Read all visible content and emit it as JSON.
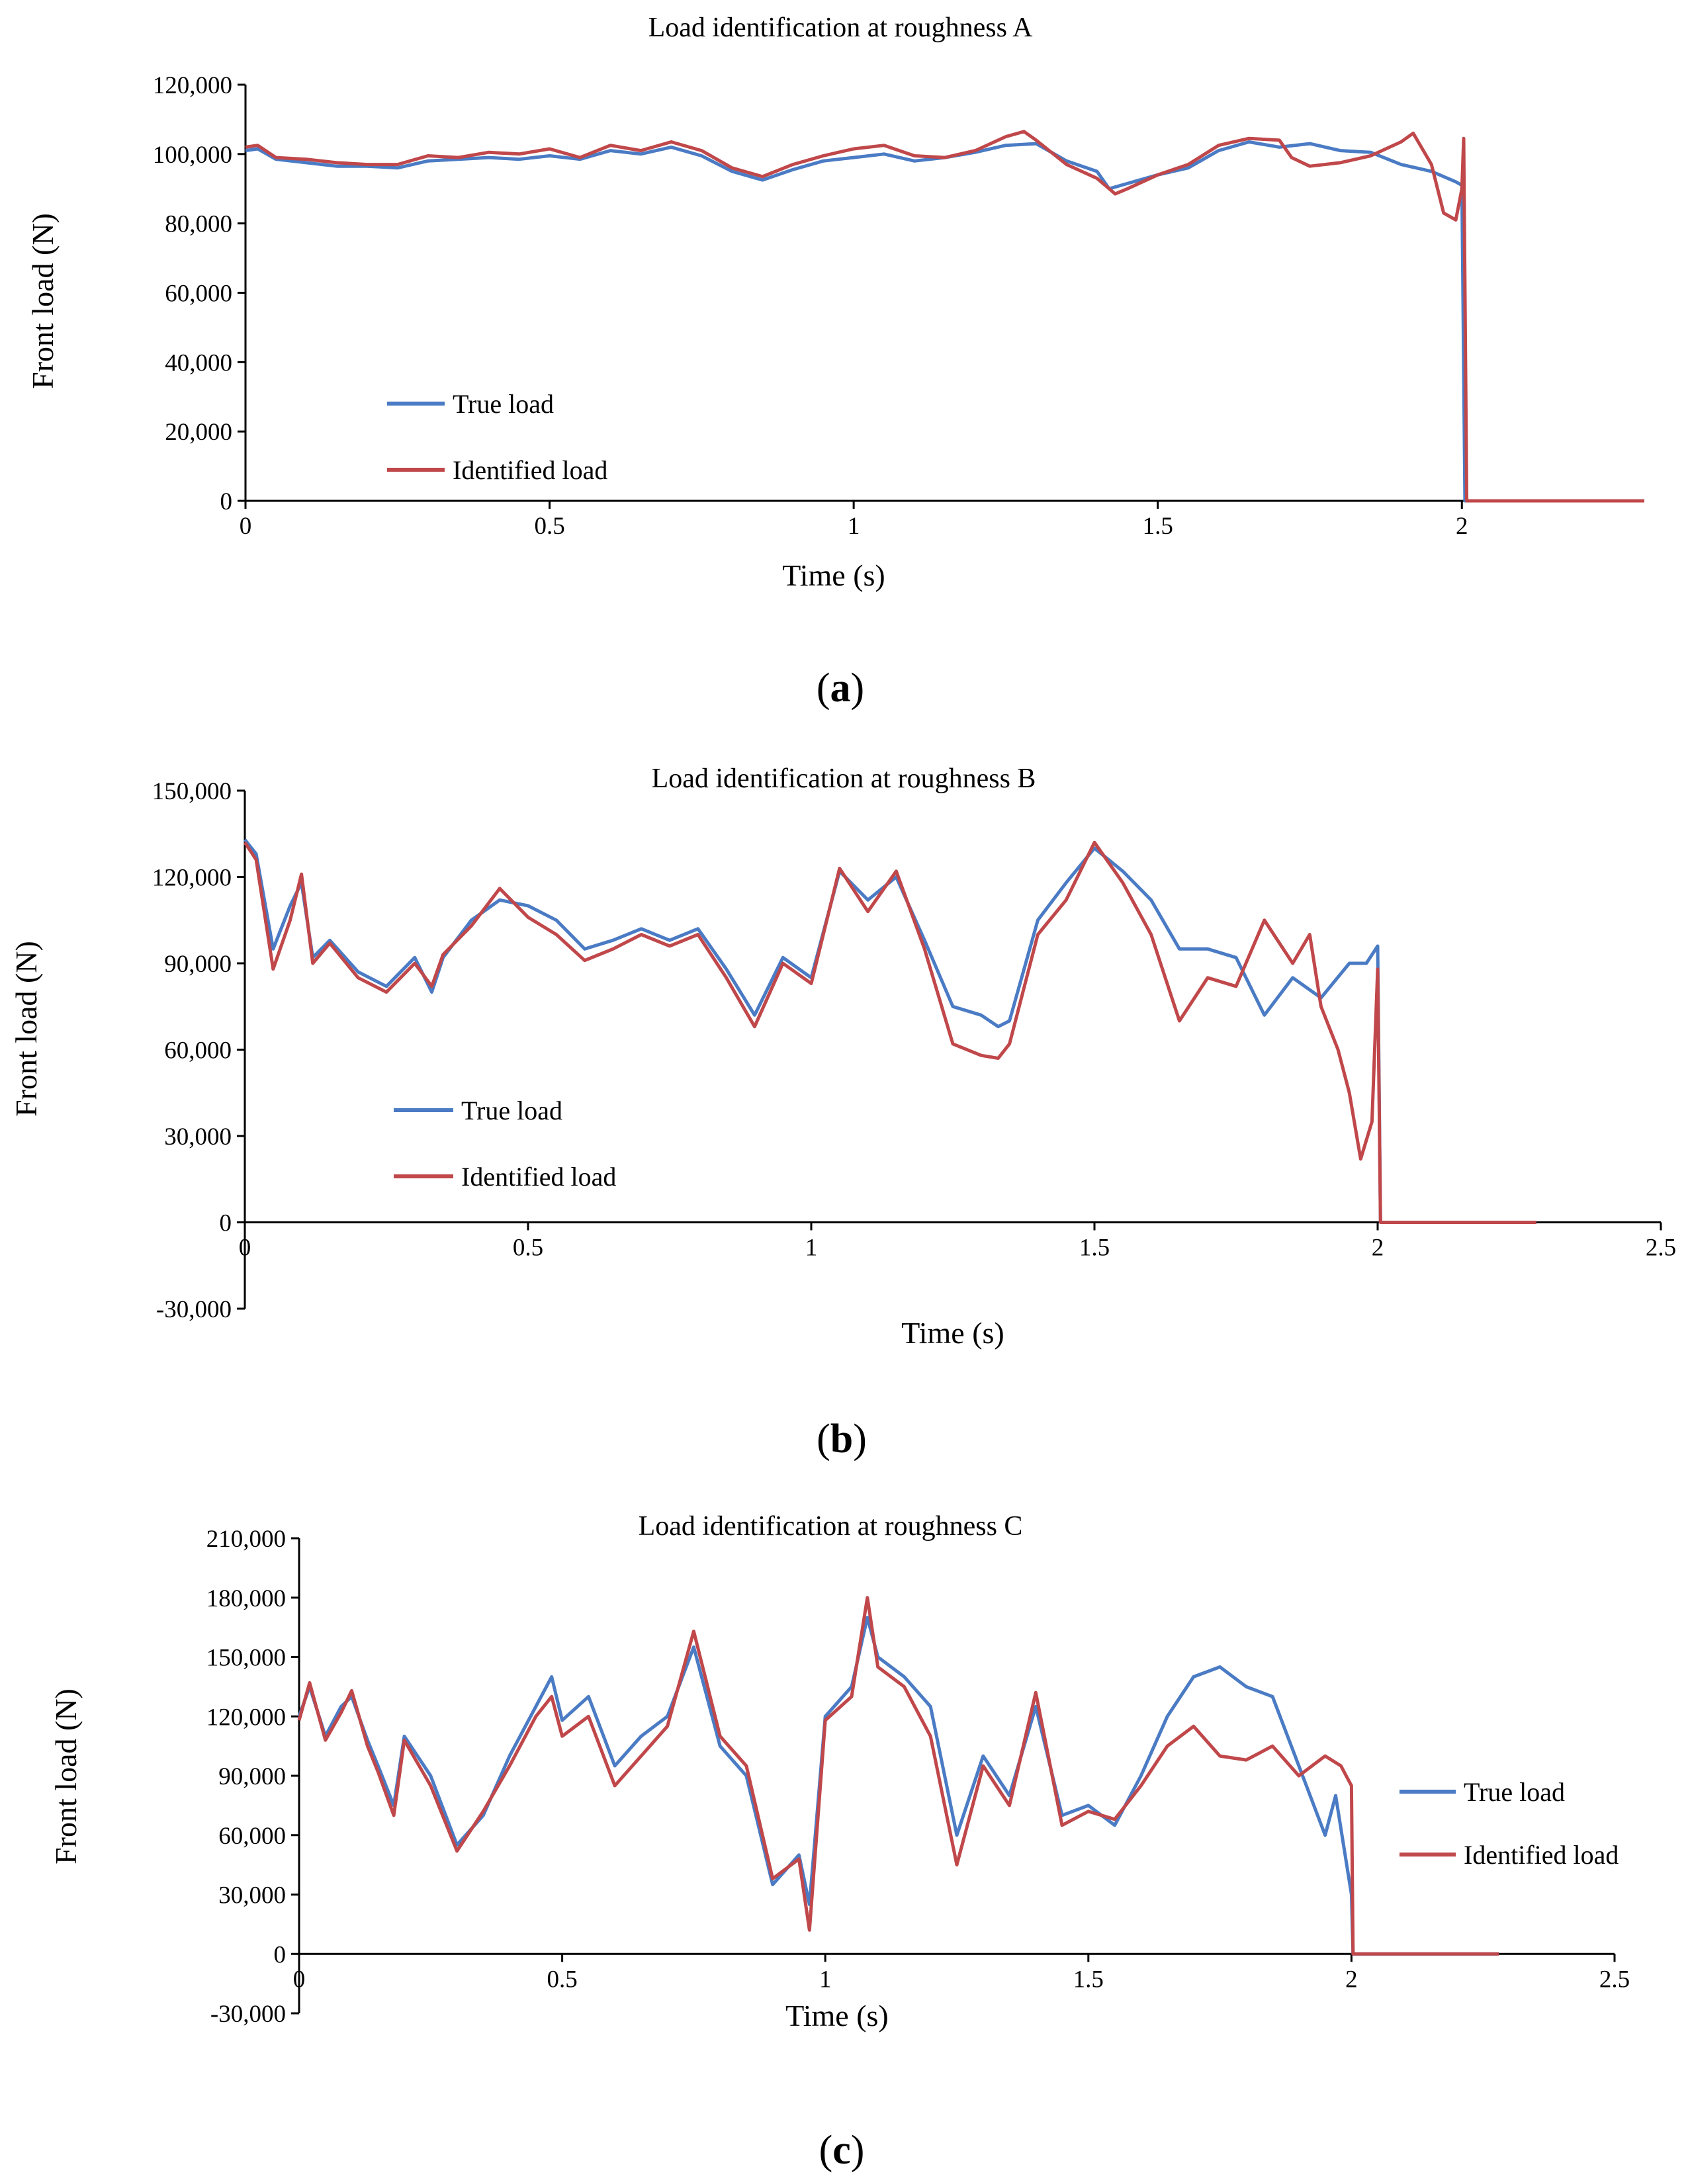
{
  "colors": {
    "true_load": "#4a7bc4",
    "identified_load": "#c0474a",
    "axis": "#000000"
  },
  "chart_data": [
    {
      "type": "line",
      "panel_label": "a",
      "title": "Load identification at roughness A",
      "xlabel": "Time (s)",
      "ylabel": "Front load (N)",
      "xlim": [
        0,
        2.3
      ],
      "ylim": [
        0,
        120000
      ],
      "xticks": [
        0,
        0.5,
        1,
        1.5,
        2
      ],
      "xtick_labels": [
        "0",
        "0.5",
        "1",
        "1.5",
        "2"
      ],
      "yticks": [
        0,
        20000,
        40000,
        60000,
        80000,
        100000,
        120000
      ],
      "ytick_labels": [
        "0",
        "20,000",
        "40,000",
        "60,000",
        "80,000",
        "100,000",
        "120,000"
      ],
      "legend": {
        "position": "lower-left",
        "entries": [
          "True load",
          "Identified load"
        ]
      },
      "series": [
        {
          "name": "True load",
          "x": [
            0,
            0.02,
            0.05,
            0.1,
            0.15,
            0.2,
            0.25,
            0.3,
            0.35,
            0.4,
            0.45,
            0.5,
            0.55,
            0.6,
            0.65,
            0.7,
            0.75,
            0.8,
            0.85,
            0.9,
            0.95,
            1.0,
            1.05,
            1.1,
            1.15,
            1.2,
            1.25,
            1.3,
            1.35,
            1.4,
            1.42,
            1.45,
            1.5,
            1.55,
            1.6,
            1.65,
            1.7,
            1.75,
            1.8,
            1.85,
            1.9,
            1.95,
            1.99,
            2.0,
            2.005,
            2.3
          ],
          "y": [
            101000,
            101500,
            98500,
            97500,
            96500,
            96500,
            96000,
            98000,
            98500,
            99000,
            98500,
            99500,
            98500,
            101000,
            100000,
            102000,
            99500,
            95000,
            92500,
            95500,
            98000,
            99000,
            100000,
            98000,
            99000,
            100500,
            102500,
            103000,
            98000,
            95000,
            90000,
            91500,
            94000,
            96000,
            101000,
            103500,
            102000,
            103000,
            101000,
            100500,
            97000,
            95000,
            92000,
            91000,
            0,
            0
          ]
        },
        {
          "name": "Identified load",
          "x": [
            0,
            0.02,
            0.05,
            0.1,
            0.15,
            0.2,
            0.25,
            0.3,
            0.35,
            0.4,
            0.45,
            0.5,
            0.55,
            0.6,
            0.65,
            0.7,
            0.75,
            0.8,
            0.85,
            0.9,
            0.95,
            1.0,
            1.05,
            1.1,
            1.15,
            1.2,
            1.25,
            1.28,
            1.3,
            1.35,
            1.4,
            1.43,
            1.45,
            1.5,
            1.55,
            1.6,
            1.65,
            1.7,
            1.72,
            1.75,
            1.8,
            1.85,
            1.9,
            1.92,
            1.95,
            1.97,
            1.99,
            2.0,
            2.003,
            2.008,
            2.3
          ],
          "y": [
            102000,
            102500,
            99000,
            98500,
            97500,
            97000,
            97000,
            99500,
            99000,
            100500,
            100000,
            101500,
            99000,
            102500,
            101000,
            103500,
            101000,
            96000,
            93500,
            97000,
            99500,
            101500,
            102500,
            99500,
            99000,
            101000,
            105000,
            106500,
            104000,
            97000,
            93000,
            88500,
            90000,
            94000,
            97000,
            102500,
            104500,
            104000,
            99000,
            96500,
            97500,
            99500,
            103500,
            106000,
            97000,
            83000,
            81000,
            90000,
            104500,
            0,
            0
          ]
        }
      ]
    },
    {
      "type": "line",
      "panel_label": "b",
      "title": "Load identification at roughness B",
      "xlabel": "Time (s)",
      "ylabel": "Front load (N)",
      "xlim": [
        0,
        2.5
      ],
      "ylim": [
        -30000,
        150000
      ],
      "xticks": [
        0,
        0.5,
        1,
        1.5,
        2,
        2.5
      ],
      "xtick_labels": [
        "0",
        "0.5",
        "1",
        "1.5",
        "2",
        "2.5"
      ],
      "yticks": [
        -30000,
        0,
        30000,
        60000,
        90000,
        120000,
        150000
      ],
      "ytick_labels": [
        "-30,000",
        "0",
        "30,000",
        "60,000",
        "90,000",
        "120,000",
        "150,000"
      ],
      "legend": {
        "position": "lower-left",
        "entries": [
          "True load",
          "Identified load"
        ]
      },
      "series": [
        {
          "name": "True load",
          "x": [
            0,
            0.02,
            0.05,
            0.08,
            0.1,
            0.12,
            0.15,
            0.2,
            0.25,
            0.3,
            0.33,
            0.35,
            0.4,
            0.45,
            0.5,
            0.55,
            0.6,
            0.65,
            0.7,
            0.75,
            0.8,
            0.85,
            0.9,
            0.95,
            1.0,
            1.05,
            1.1,
            1.15,
            1.2,
            1.25,
            1.3,
            1.33,
            1.35,
            1.4,
            1.45,
            1.5,
            1.55,
            1.6,
            1.65,
            1.7,
            1.75,
            1.8,
            1.85,
            1.9,
            1.95,
            1.98,
            2.0,
            2.005,
            2.28
          ],
          "y": [
            133000,
            128000,
            95000,
            110000,
            118000,
            92000,
            98000,
            87000,
            82000,
            92000,
            80000,
            92000,
            105000,
            112000,
            110000,
            105000,
            95000,
            98000,
            102000,
            98000,
            102000,
            88000,
            72000,
            92000,
            85000,
            122000,
            112000,
            120000,
            98000,
            75000,
            72000,
            68000,
            70000,
            105000,
            118000,
            130000,
            122000,
            112000,
            95000,
            95000,
            92000,
            72000,
            85000,
            78000,
            90000,
            90000,
            96000,
            0,
            0
          ]
        },
        {
          "name": "Identified load",
          "x": [
            0,
            0.02,
            0.05,
            0.08,
            0.1,
            0.12,
            0.15,
            0.2,
            0.25,
            0.3,
            0.33,
            0.35,
            0.4,
            0.45,
            0.5,
            0.55,
            0.6,
            0.65,
            0.7,
            0.75,
            0.8,
            0.85,
            0.9,
            0.95,
            1.0,
            1.05,
            1.1,
            1.15,
            1.2,
            1.25,
            1.3,
            1.33,
            1.35,
            1.4,
            1.45,
            1.5,
            1.55,
            1.6,
            1.65,
            1.7,
            1.75,
            1.8,
            1.85,
            1.88,
            1.9,
            1.93,
            1.95,
            1.97,
            1.99,
            2.0,
            2.005,
            2.28
          ],
          "y": [
            132000,
            126000,
            88000,
            105000,
            121000,
            90000,
            97000,
            85000,
            80000,
            90000,
            82000,
            93000,
            103000,
            116000,
            106000,
            100000,
            91000,
            95000,
            100000,
            96000,
            100000,
            85000,
            68000,
            90000,
            83000,
            123000,
            108000,
            122000,
            95000,
            62000,
            58000,
            57000,
            62000,
            100000,
            112000,
            132000,
            118000,
            100000,
            70000,
            85000,
            82000,
            105000,
            90000,
            100000,
            75000,
            60000,
            45000,
            22000,
            35000,
            88000,
            0,
            0
          ]
        }
      ]
    },
    {
      "type": "line",
      "panel_label": "c",
      "title": "Load identification at roughness C",
      "xlabel": "Time (s)",
      "ylabel": "Front load (N)",
      "xlim": [
        0,
        2.5
      ],
      "ylim": [
        -30000,
        210000
      ],
      "xticks": [
        0,
        0.5,
        1,
        1.5,
        2,
        2.5
      ],
      "xtick_labels": [
        "0",
        "0.5",
        "1",
        "1.5",
        "2",
        "2.5"
      ],
      "yticks": [
        -30000,
        0,
        30000,
        60000,
        90000,
        120000,
        150000,
        180000,
        210000
      ],
      "ytick_labels": [
        "-30,000",
        "0",
        "30,000",
        "60,000",
        "90,000",
        "120,000",
        "150,000",
        "180,000",
        "210,000"
      ],
      "legend": {
        "position": "right",
        "entries": [
          "True load",
          "Identified load"
        ]
      },
      "series": [
        {
          "name": "True load",
          "x": [
            0,
            0.02,
            0.05,
            0.08,
            0.1,
            0.13,
            0.15,
            0.18,
            0.2,
            0.25,
            0.3,
            0.35,
            0.4,
            0.45,
            0.48,
            0.5,
            0.55,
            0.6,
            0.65,
            0.7,
            0.75,
            0.8,
            0.85,
            0.9,
            0.95,
            0.97,
            1.0,
            1.05,
            1.08,
            1.1,
            1.15,
            1.2,
            1.25,
            1.3,
            1.35,
            1.4,
            1.45,
            1.5,
            1.55,
            1.6,
            1.65,
            1.7,
            1.75,
            1.8,
            1.85,
            1.9,
            1.95,
            1.97,
            2.0,
            2.003,
            2.28
          ],
          "y": [
            120000,
            135000,
            110000,
            125000,
            130000,
            108000,
            95000,
            75000,
            110000,
            90000,
            55000,
            70000,
            100000,
            125000,
            140000,
            118000,
            130000,
            95000,
            110000,
            120000,
            155000,
            105000,
            90000,
            35000,
            50000,
            25000,
            120000,
            135000,
            170000,
            150000,
            140000,
            125000,
            60000,
            100000,
            80000,
            125000,
            70000,
            75000,
            65000,
            90000,
            120000,
            140000,
            145000,
            135000,
            130000,
            95000,
            60000,
            80000,
            30000,
            0,
            0
          ]
        },
        {
          "name": "Identified load",
          "x": [
            0,
            0.02,
            0.05,
            0.08,
            0.1,
            0.13,
            0.15,
            0.18,
            0.2,
            0.25,
            0.3,
            0.35,
            0.4,
            0.45,
            0.48,
            0.5,
            0.55,
            0.6,
            0.65,
            0.7,
            0.75,
            0.8,
            0.85,
            0.9,
            0.95,
            0.97,
            1.0,
            1.05,
            1.08,
            1.1,
            1.15,
            1.2,
            1.25,
            1.3,
            1.35,
            1.4,
            1.45,
            1.5,
            1.55,
            1.6,
            1.65,
            1.7,
            1.75,
            1.8,
            1.85,
            1.9,
            1.95,
            1.98,
            1.99,
            2.0,
            2.003,
            2.28
          ],
          "y": [
            118000,
            137000,
            108000,
            122000,
            133000,
            105000,
            92000,
            70000,
            108000,
            85000,
            52000,
            72000,
            95000,
            120000,
            130000,
            110000,
            120000,
            85000,
            100000,
            115000,
            163000,
            110000,
            95000,
            38000,
            48000,
            12000,
            118000,
            130000,
            180000,
            145000,
            135000,
            110000,
            45000,
            95000,
            75000,
            132000,
            65000,
            72000,
            68000,
            85000,
            105000,
            115000,
            100000,
            98000,
            105000,
            90000,
            100000,
            95000,
            90000,
            85000,
            0,
            0
          ]
        }
      ]
    }
  ]
}
